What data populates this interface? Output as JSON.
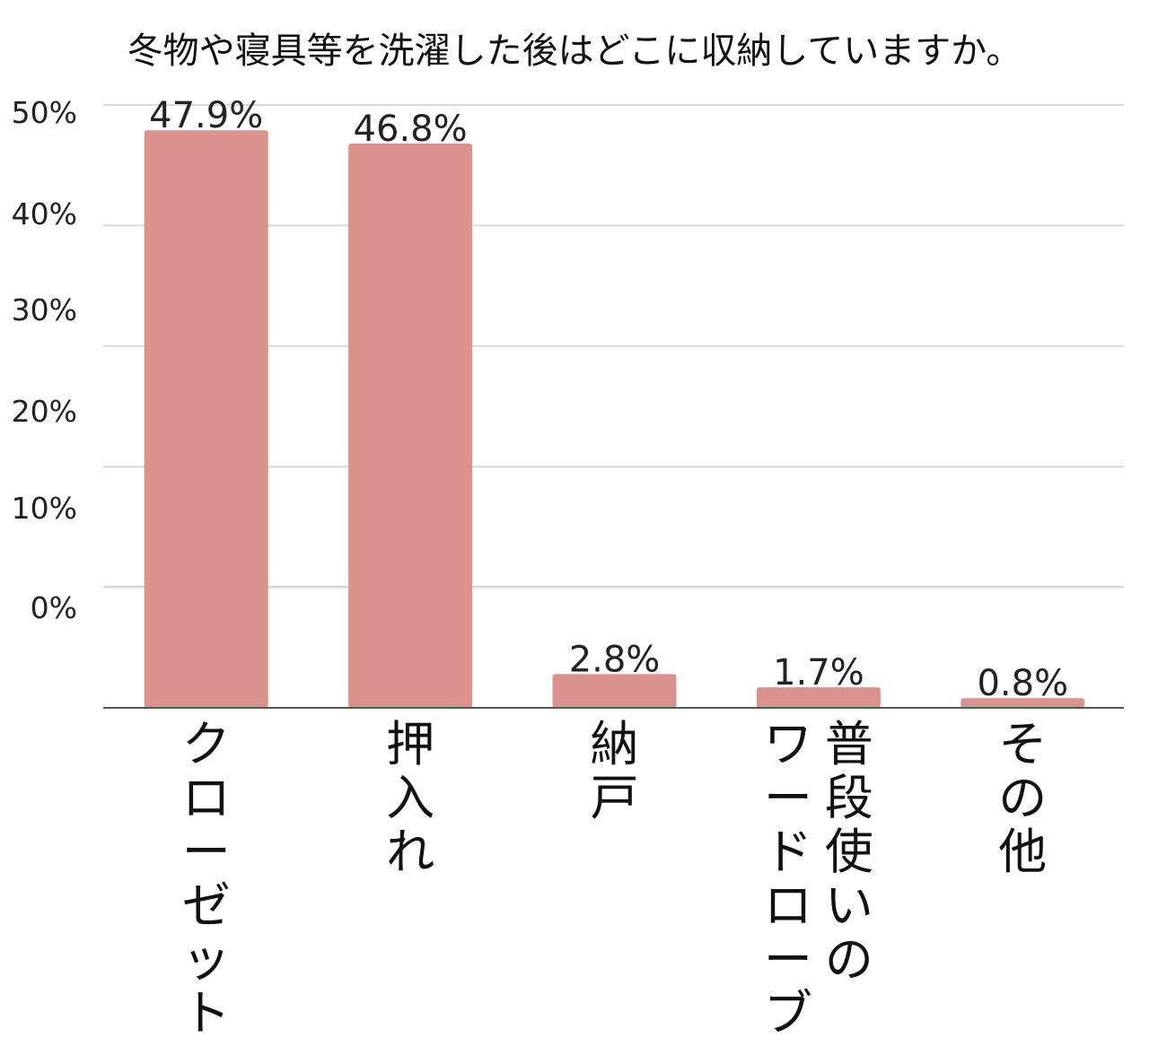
{
  "chart_data": {
    "type": "bar",
    "title": "冬物や寝具等を洗濯した後はどこに収納していますか。",
    "xlabel": "",
    "ylabel": "",
    "categories": [
      "クローゼット",
      "押入れ",
      "納戸",
      "普段使いのワードローブ",
      "その他"
    ],
    "category_lines": [
      [
        "クローゼット"
      ],
      [
        "押入れ"
      ],
      [
        "納戸"
      ],
      [
        "ワードローブ",
        "普段使いの"
      ],
      [
        "その他"
      ]
    ],
    "values": [
      47.9,
      46.8,
      2.8,
      1.7,
      0.8
    ],
    "value_labels": [
      "47.9%",
      "46.8%",
      "2.8%",
      "1.7%",
      "0.8%"
    ],
    "ylim": [
      0,
      50
    ],
    "y_ticks": [
      {
        "label": "50%",
        "value": 50
      },
      {
        "label": "40%",
        "value": 40
      },
      {
        "label": "30%",
        "value": 30
      },
      {
        "label": "20%",
        "value": 20
      },
      {
        "label": "10%",
        "value": 10
      },
      {
        "label": "0%",
        "value": 0
      }
    ],
    "grid": true,
    "legend": "none",
    "bar_color": "#d9928d",
    "gridline_color": "#d9d9d9",
    "baseline_color": "#555555"
  }
}
